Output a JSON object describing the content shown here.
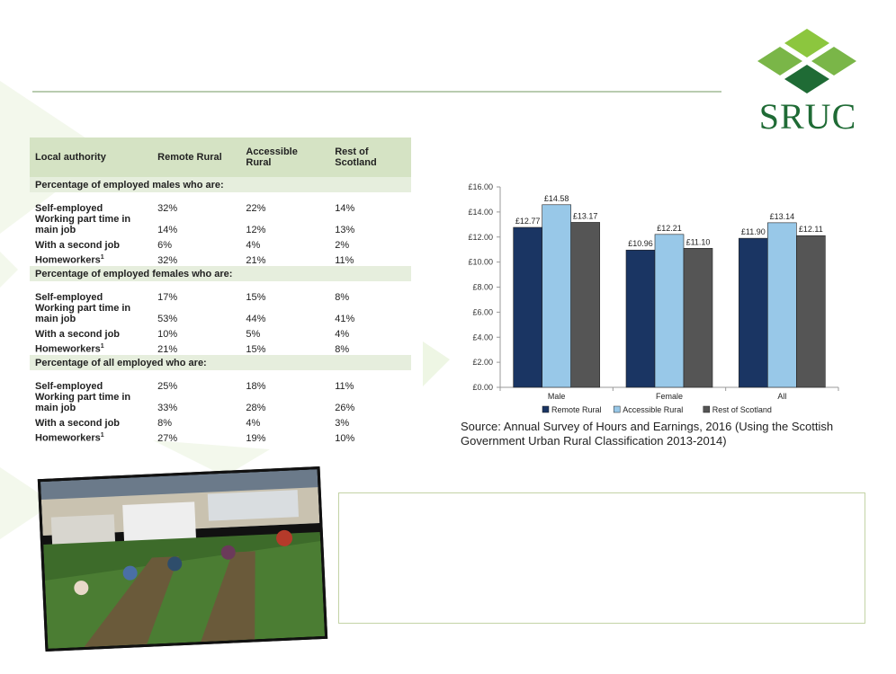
{
  "logo": {
    "text": "SRUC"
  },
  "table": {
    "headers": [
      "Local authority",
      "Remote Rural",
      "Accessible Rural",
      "Rest of Scotland"
    ],
    "sections": [
      {
        "title": "Percentage of employed males who are:",
        "rows": [
          {
            "label": "Self-employed",
            "values": [
              "32%",
              "22%",
              "14%"
            ]
          },
          {
            "label": "Working part time in main job",
            "values": [
              "14%",
              "12%",
              "13%"
            ]
          },
          {
            "label": "With a second job",
            "values": [
              "6%",
              "4%",
              "2%"
            ]
          },
          {
            "label": "Homeworkers",
            "sup": "1",
            "values": [
              "32%",
              "21%",
              "11%"
            ]
          }
        ]
      },
      {
        "title": "Percentage of employed females who are:",
        "rows": [
          {
            "label": "Self-employed",
            "values": [
              "17%",
              "15%",
              "8%"
            ]
          },
          {
            "label": "Working part time in main job",
            "values": [
              "53%",
              "44%",
              "41%"
            ]
          },
          {
            "label": "With a second job",
            "values": [
              "10%",
              "5%",
              "4%"
            ]
          },
          {
            "label": "Homeworkers",
            "sup": "1",
            "values": [
              "21%",
              "15%",
              "8%"
            ]
          }
        ]
      },
      {
        "title": "Percentage of all employed who are:",
        "rows": [
          {
            "label": "Self-employed",
            "values": [
              "25%",
              "18%",
              "11%"
            ]
          },
          {
            "label": "Working part time in main job",
            "values": [
              "33%",
              "28%",
              "26%"
            ]
          },
          {
            "label": "With a second job",
            "values": [
              "8%",
              "4%",
              "3%"
            ]
          },
          {
            "label": "Homeworkers",
            "sup": "1",
            "values": [
              "27%",
              "19%",
              "10%"
            ]
          }
        ]
      }
    ]
  },
  "chart_data": {
    "type": "bar",
    "categories": [
      "Male",
      "Female",
      "All"
    ],
    "series": [
      {
        "name": "Remote Rural",
        "values": [
          12.77,
          10.96,
          11.9
        ],
        "labels": [
          "£12.77",
          "£10.96",
          "£11.90"
        ],
        "color": "#1a3563"
      },
      {
        "name": "Accessible Rural",
        "values": [
          14.58,
          12.21,
          13.14
        ],
        "labels": [
          "£14.58",
          "£12.21",
          "£13.14"
        ],
        "color": "#98c8e8"
      },
      {
        "name": "Rest of Scotland",
        "values": [
          13.17,
          11.1,
          12.11
        ],
        "labels": [
          "£13.17",
          "£11.10",
          "£12.11"
        ],
        "color": "#555555"
      }
    ],
    "ylim": [
      0,
      16
    ],
    "yticks": [
      "£0.00",
      "£2.00",
      "£4.00",
      "£6.00",
      "£8.00",
      "£10.00",
      "£12.00",
      "£14.00",
      "£16.00"
    ],
    "title": "",
    "xlabel": "",
    "ylabel": "",
    "grid": false,
    "legend": "bottom"
  },
  "source": "Source: Annual Survey of Hours and Earnings, 2016 (Using the Scottish Government Urban Rural Classification 2013-2014)",
  "colors": {
    "accent_green": "#1f6b35",
    "light_green": "#8bc34a",
    "table_header": "#d5e3c4"
  }
}
